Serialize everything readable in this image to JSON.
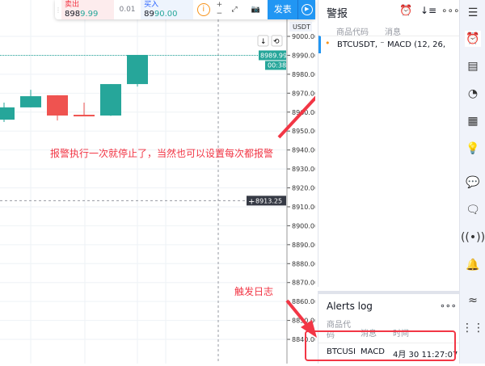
{
  "trade_bar": {
    "sell_label": "卖出",
    "sell_price_a": "898",
    "sell_price_b": "9.99",
    "qty": "0.01",
    "buy_label": "买入",
    "buy_price_a": "89",
    "buy_price_b": "90.00",
    "publish_label": "发表"
  },
  "price_axis": {
    "currency": "USDT",
    "ticks": [
      "9000.00",
      "8990.00",
      "8980.00",
      "8970.00",
      "8960.00",
      "8950.00",
      "8940.00",
      "8930.00",
      "8920.00",
      "8910.00",
      "8900.00",
      "8890.00",
      "8880.00",
      "8870.00",
      "8860.00",
      "8850.00",
      "8840.00"
    ],
    "last_price": "8989.99",
    "countdown": "00:38",
    "crosshair_price": "8913.25"
  },
  "candles": [
    {
      "o": 8956,
      "h": 8965,
      "l": 8954.8,
      "c": 8962.5
    },
    {
      "o": 8962.5,
      "h": 8971.8,
      "l": 8962.5,
      "c": 8968.4
    },
    {
      "o": 8968.9,
      "h": 8968.9,
      "l": 8955.6,
      "c": 8958.2
    },
    {
      "o": 8958.6,
      "h": 8965,
      "l": 8957.8,
      "c": 8957.8
    },
    {
      "o": 8958.2,
      "h": 8974.8,
      "l": 8958,
      "c": 8974.8
    },
    {
      "o": 8974.8,
      "h": 8990.2,
      "l": 8973.5,
      "c": 8990.2
    }
  ],
  "colors": {
    "up": "#26a69a",
    "down": "#ef5350",
    "accent": "#2196f3",
    "annotation": "#f23645"
  },
  "annotations": {
    "main": "报警执行一次就停止了，当然也可以设置每次都报警",
    "log": "触发日志"
  },
  "alerts": {
    "title": "警报",
    "col_symbol": "商品代码",
    "col_message": "消息",
    "rows": [
      {
        "symbol": "BTCUSDT, ⁻",
        "message": "MACD (12, 26,"
      }
    ]
  },
  "alerts_log": {
    "title": "Alerts log",
    "col_symbol": "商品代\n码",
    "col_message": "消息",
    "col_time": "时间",
    "rows": [
      {
        "symbol": "BTCUSI",
        "message": "MACD",
        "time": "4月 30 11:27:07"
      }
    ]
  }
}
